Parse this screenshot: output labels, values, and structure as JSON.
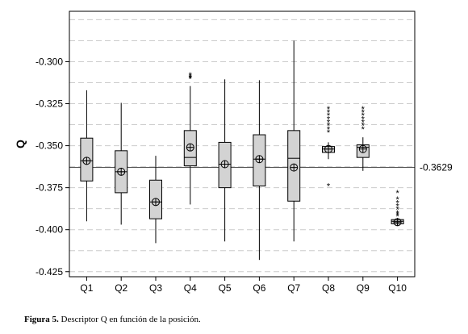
{
  "chart_data": {
    "type": "boxplot",
    "ylabel": "Q",
    "xlabel": "",
    "ylim": [
      -0.428,
      -0.27
    ],
    "yticks": [
      -0.3,
      -0.325,
      -0.35,
      -0.375,
      -0.4,
      -0.425
    ],
    "ytick_labels": [
      "-0.300",
      "-0.325",
      "-0.350",
      "-0.375",
      "-0.400",
      "-0.425"
    ],
    "grid": "dashed horizontal",
    "categories": [
      "Q1",
      "Q2",
      "Q3",
      "Q4",
      "Q5",
      "Q6",
      "Q7",
      "Q8",
      "Q9",
      "Q10"
    ],
    "reference_line": {
      "value": -0.3629,
      "label": "-0.3629"
    },
    "box_color": "#d3d3d3",
    "boxes": [
      {
        "name": "Q1",
        "whisker_low": -0.395,
        "q1": -0.371,
        "median": -0.359,
        "q3": -0.3455,
        "whisker_high": -0.317,
        "mean": -0.359,
        "outliers": []
      },
      {
        "name": "Q2",
        "whisker_low": -0.397,
        "q1": -0.378,
        "median": -0.3655,
        "q3": -0.353,
        "whisker_high": -0.3245,
        "mean": -0.3655,
        "outliers": []
      },
      {
        "name": "Q3",
        "whisker_low": -0.408,
        "q1": -0.3935,
        "median": -0.3835,
        "q3": -0.3705,
        "whisker_high": -0.356,
        "mean": -0.3835,
        "outliers": []
      },
      {
        "name": "Q4",
        "whisker_low": -0.385,
        "q1": -0.362,
        "median": -0.357,
        "q3": -0.341,
        "whisker_high": -0.3145,
        "mean": -0.351,
        "outliers": [
          -0.308,
          -0.309,
          -0.3095,
          -0.31
        ]
      },
      {
        "name": "Q5",
        "whisker_low": -0.407,
        "q1": -0.375,
        "median": -0.361,
        "q3": -0.348,
        "whisker_high": -0.3105,
        "mean": -0.361,
        "outliers": []
      },
      {
        "name": "Q6",
        "whisker_low": -0.418,
        "q1": -0.374,
        "median": -0.358,
        "q3": -0.3435,
        "whisker_high": -0.311,
        "mean": -0.358,
        "outliers": []
      },
      {
        "name": "Q7",
        "whisker_low": -0.407,
        "q1": -0.383,
        "median": -0.3575,
        "q3": -0.341,
        "whisker_high": -0.2875,
        "mean": -0.363,
        "outliers": []
      },
      {
        "name": "Q8",
        "whisker_low": -0.358,
        "q1": -0.354,
        "median": -0.352,
        "q3": -0.3505,
        "whisker_high": -0.348,
        "mean": -0.352,
        "outliers": [
          -0.328,
          -0.33,
          -0.332,
          -0.334,
          -0.336,
          -0.338,
          -0.34,
          -0.342,
          -0.374
        ]
      },
      {
        "name": "Q9",
        "whisker_low": -0.365,
        "q1": -0.357,
        "median": -0.351,
        "q3": -0.3495,
        "whisker_high": -0.345,
        "mean": -0.352,
        "outliers": [
          -0.328,
          -0.33,
          -0.332,
          -0.334,
          -0.336,
          -0.338,
          -0.34
        ]
      },
      {
        "name": "Q10",
        "whisker_low": -0.3975,
        "q1": -0.3965,
        "median": -0.395,
        "q3": -0.394,
        "whisker_high": -0.393,
        "mean": -0.3955,
        "outliers": [
          -0.378,
          -0.382,
          -0.384,
          -0.386,
          -0.388,
          -0.39,
          -0.391,
          -0.392
        ]
      }
    ]
  },
  "caption": {
    "label": "Figura 5.",
    "text": " Descriptor Q en función de la posición."
  }
}
